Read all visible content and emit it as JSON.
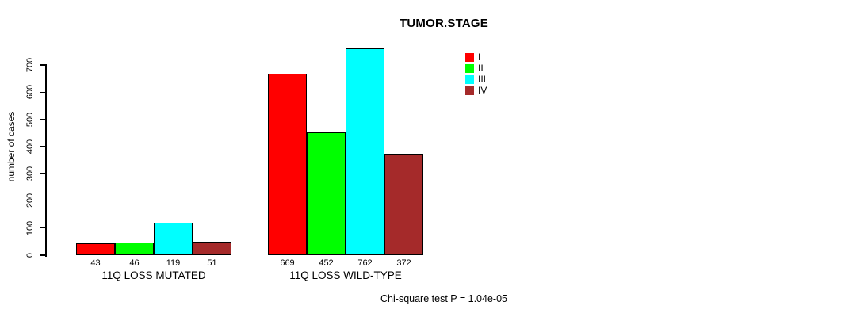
{
  "chart_data": {
    "type": "bar",
    "title": "TUMOR.STAGE",
    "xlabel": "",
    "ylabel": "number of cases",
    "ylim": [
      0,
      700
    ],
    "yticks": [
      0,
      100,
      200,
      300,
      400,
      500,
      600,
      700
    ],
    "grid": false,
    "legend_position": "top-right",
    "series_names": [
      "I",
      "II",
      "III",
      "IV"
    ],
    "colors": [
      "#ff0000",
      "#00ff00",
      "#00ffff",
      "#a52a2a"
    ],
    "bar_border_color": "#000000",
    "groups": [
      {
        "label": "11Q LOSS MUTATED",
        "values": [
          43,
          46,
          119,
          51
        ]
      },
      {
        "label": "11Q LOSS WILD-TYPE",
        "values": [
          669,
          452,
          762,
          372
        ]
      }
    ],
    "bar_value_labels_shown": true,
    "annotation": "Chi-square test P = 1.04e-05"
  }
}
